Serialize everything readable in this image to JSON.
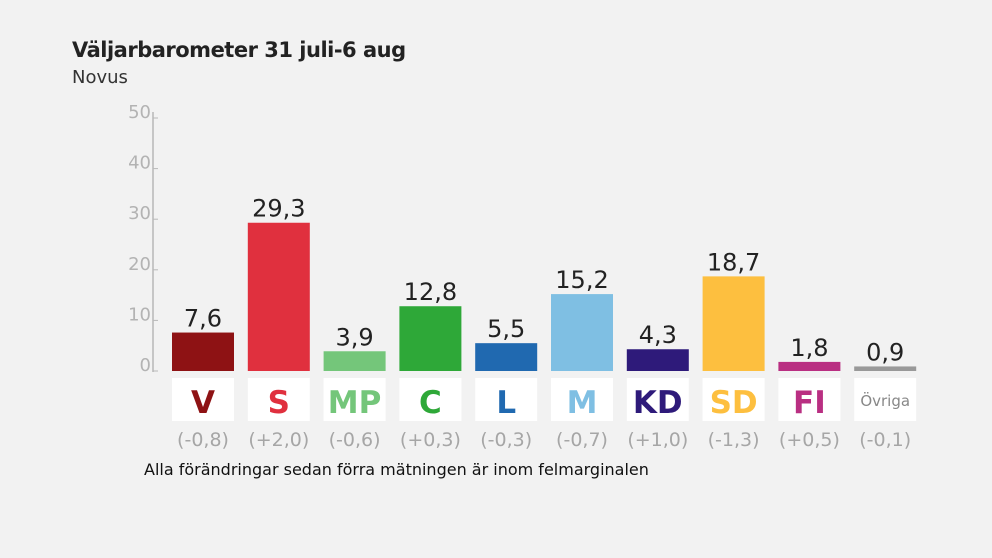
{
  "chart_data": {
    "type": "bar",
    "title": "Väljarbarometer  31 juli-6 aug",
    "subtitle": "Novus",
    "footnote": "Alla förändringar sedan förra mätningen är inom felmarginalen",
    "ylim": [
      0,
      50
    ],
    "yticks": [
      "0",
      "10",
      "20",
      "30",
      "40",
      "50"
    ],
    "grid": false,
    "categories": [
      "V",
      "S",
      "MP",
      "C",
      "L",
      "M",
      "KD",
      "SD",
      "FI",
      "Övriga"
    ],
    "values": [
      7.6,
      29.3,
      3.9,
      12.8,
      5.5,
      15.2,
      4.3,
      18.7,
      1.8,
      0.9
    ],
    "value_labels": [
      "7,6",
      "29,3",
      "3,9",
      "12,8",
      "5,5",
      "15,2",
      "4,3",
      "18,7",
      "1,8",
      "0,9"
    ],
    "changes": [
      "(-0,8)",
      "(+2,0)",
      "(-0,6)",
      "(+0,3)",
      "(-0,3)",
      "(-0,7)",
      "(+1,0)",
      "(-1,3)",
      "(+0,5)",
      "(-0,1)"
    ],
    "colors": [
      "#8e1214",
      "#e0303e",
      "#74c67a",
      "#2ea838",
      "#2069b0",
      "#7fbfe3",
      "#2e1a7a",
      "#fdbf3f",
      "#b92f82",
      "#999999"
    ]
  }
}
